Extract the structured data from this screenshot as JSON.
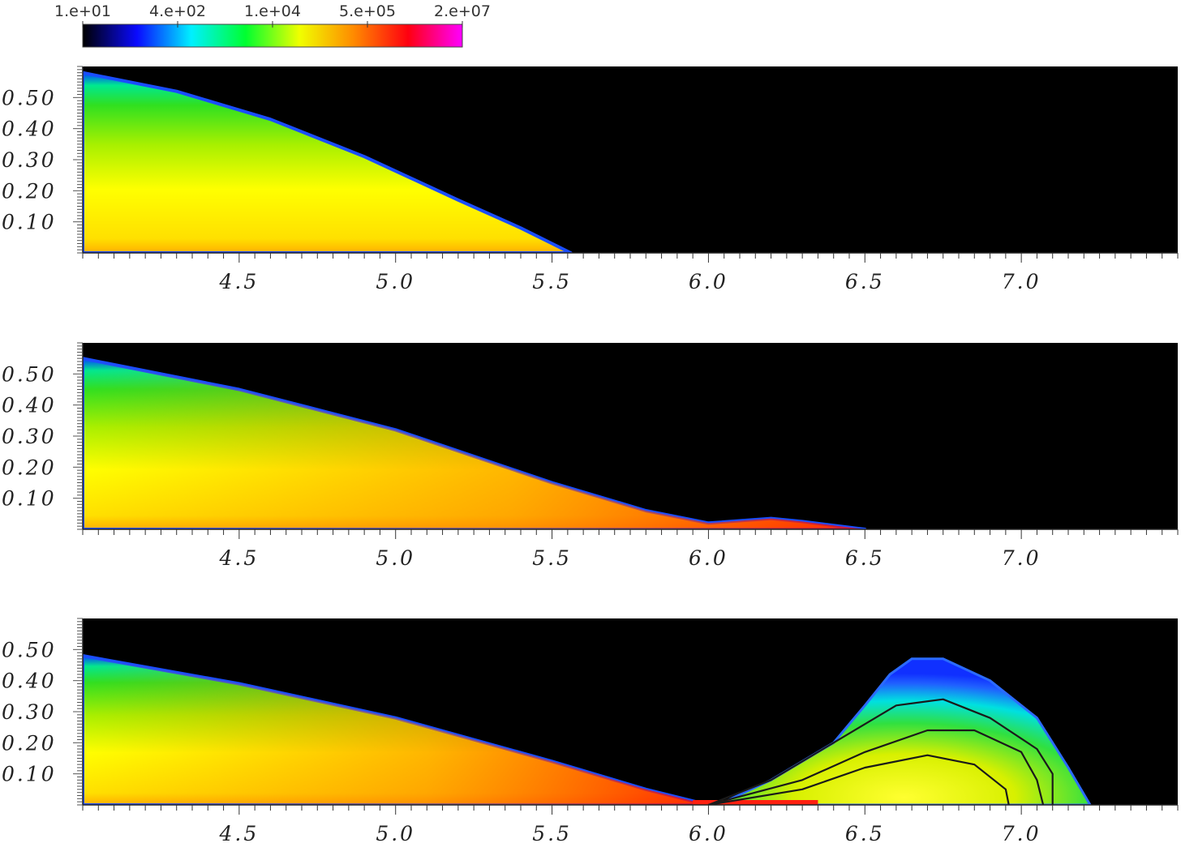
{
  "colorbar": {
    "scale": "log",
    "range": [
      10,
      20000000
    ],
    "tick_labels": [
      "1.e+01",
      "4.e+02",
      "1.e+04",
      "5.e+05",
      "2.e+07"
    ],
    "colors": [
      "#000000",
      "#0a0aff",
      "#00f0ff",
      "#00ff30",
      "#f0ff00",
      "#ff8a00",
      "#ff0010",
      "#ff00ff"
    ]
  },
  "chart_data": [
    {
      "type": "heatmap",
      "panel": "top",
      "colorscale": "log, shared colorbar",
      "xlim": [
        4.0,
        7.5
      ],
      "ylim": [
        0.0,
        0.6
      ],
      "xticks": [
        4.5,
        5.0,
        5.5,
        6.0,
        6.5,
        7.0
      ],
      "xtick_labels": [
        "4.5",
        "5.0",
        "5.5",
        "6.0",
        "6.5",
        "7.0"
      ],
      "yticks": [
        0.1,
        0.2,
        0.3,
        0.4,
        0.5
      ],
      "ytick_labels": [
        "0.10",
        "0.20",
        "0.30",
        "0.40",
        "0.50"
      ],
      "region_top_boundary": {
        "x": [
          4.0,
          4.3,
          4.6,
          4.9,
          5.2,
          5.4,
          5.5,
          5.56
        ],
        "y": [
          0.58,
          0.52,
          0.43,
          0.31,
          0.17,
          0.08,
          0.03,
          0.0
        ]
      },
      "contours": []
    },
    {
      "type": "heatmap",
      "panel": "middle",
      "colorscale": "log, shared colorbar",
      "xlim": [
        4.0,
        7.5
      ],
      "ylim": [
        0.0,
        0.6
      ],
      "xticks": [
        4.5,
        5.0,
        5.5,
        6.0,
        6.5,
        7.0
      ],
      "xtick_labels": [
        "4.5",
        "5.0",
        "5.5",
        "6.0",
        "6.5",
        "7.0"
      ],
      "yticks": [
        0.1,
        0.2,
        0.3,
        0.4,
        0.5
      ],
      "ytick_labels": [
        "0.10",
        "0.20",
        "0.30",
        "0.40",
        "0.50"
      ],
      "region_top_boundary": {
        "x": [
          4.0,
          4.5,
          5.0,
          5.5,
          5.8,
          6.0,
          6.2,
          6.3,
          6.5
        ],
        "y": [
          0.55,
          0.45,
          0.32,
          0.15,
          0.06,
          0.02,
          0.035,
          0.025,
          0.0
        ]
      },
      "contours": []
    },
    {
      "type": "heatmap",
      "panel": "bottom",
      "colorscale": "log, shared colorbar",
      "xlim": [
        4.0,
        7.5
      ],
      "ylim": [
        0.0,
        0.6
      ],
      "xticks": [
        4.5,
        5.0,
        5.5,
        6.0,
        6.5,
        7.0
      ],
      "xtick_labels": [
        "4.5",
        "5.0",
        "5.5",
        "6.0",
        "6.5",
        "7.0"
      ],
      "yticks": [
        0.1,
        0.2,
        0.3,
        0.4,
        0.5
      ],
      "ytick_labels": [
        "0.10",
        "0.20",
        "0.30",
        "0.40",
        "0.50"
      ],
      "region_top_boundary": {
        "x": [
          4.0,
          4.5,
          5.0,
          5.5,
          5.8,
          6.0
        ],
        "y": [
          0.48,
          0.39,
          0.28,
          0.14,
          0.05,
          0.0
        ]
      },
      "second_region_top_boundary": {
        "x": [
          6.03,
          6.2,
          6.4,
          6.5,
          6.58,
          6.65,
          6.75,
          6.9,
          7.05,
          7.15,
          7.22
        ],
        "y": [
          0.0,
          0.08,
          0.2,
          0.32,
          0.42,
          0.47,
          0.47,
          0.4,
          0.28,
          0.12,
          0.0
        ]
      },
      "contours": [
        {
          "x": [
            6.0,
            6.2,
            6.4,
            6.6,
            6.75,
            6.9,
            7.05,
            7.1,
            7.1
          ],
          "y": [
            0.0,
            0.08,
            0.2,
            0.32,
            0.34,
            0.28,
            0.18,
            0.1,
            0.0
          ]
        },
        {
          "x": [
            6.0,
            6.3,
            6.5,
            6.7,
            6.85,
            7.0,
            7.05,
            7.07
          ],
          "y": [
            0.0,
            0.08,
            0.17,
            0.24,
            0.24,
            0.17,
            0.08,
            0.0
          ]
        },
        {
          "x": [
            6.0,
            6.3,
            6.5,
            6.7,
            6.85,
            6.95,
            6.96
          ],
          "y": [
            0.0,
            0.05,
            0.12,
            0.16,
            0.13,
            0.05,
            0.0
          ]
        }
      ]
    }
  ]
}
